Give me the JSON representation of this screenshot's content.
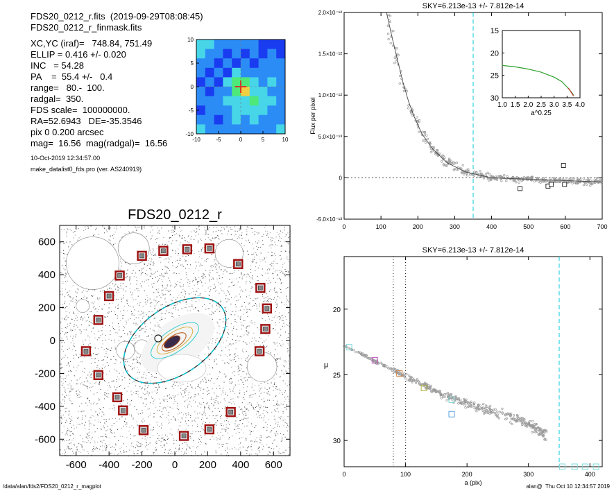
{
  "info": {
    "file_line": "FDS20_0212_r.fits  (2019-09-29T08:08:45)",
    "mask_line": "FDS20_0212_r_finmask.fits",
    "xcyc": "XC,YC (iraf)=   748.84, 751.49",
    "ellip": "ELLIP = 0.416 +/- 0.020",
    "inc": "INC   = 54.28",
    "pa": "PA    =  55.4 +/-   0.4",
    "range": "range=   80.-  100.",
    "radgal": "radgal=  350.",
    "fds_scale": "FDS scale=  100000000.",
    "radec": "RA=52.6943   DE=-35.3546",
    "pix": "pix 0 0.200 arcsec",
    "mag": "mag=  16.56  mag(radgal)=  16.56",
    "date": "10-Oct-2019 12:34:57.00",
    "program": "make_datalist0_fds.pro (ver. AS240919)"
  },
  "footer": {
    "path": "/data/alan/fds2/FDS20_0212_r_magplot",
    "user_time": "alan@  Thu Oct 10 12:34:57 2019"
  },
  "colors": {
    "accent_cyan": "#00c8d8",
    "mask_box": "#a01010",
    "data_gray": "#999999",
    "fit_green": "#2ca02c",
    "contour_low": "#33cccc",
    "contour_high": "#8b3a1a"
  },
  "chart_data": [
    {
      "type": "heatmap",
      "title": "",
      "xlim": [
        -10,
        10
      ],
      "ylim": [
        -10,
        10
      ],
      "xticks": [
        "-10",
        "-5",
        "0",
        "5",
        "10"
      ],
      "yticks": [
        "-10",
        "-5",
        "0",
        "5",
        "10"
      ],
      "grid_values": [
        [
          3,
          3,
          2,
          2,
          2,
          2,
          2,
          1,
          1,
          1
        ],
        [
          3,
          2,
          2,
          1,
          2,
          1,
          2,
          1,
          2,
          1
        ],
        [
          2,
          2,
          1,
          2,
          1,
          2,
          1,
          2,
          2,
          2
        ],
        [
          2,
          1,
          2,
          1,
          3,
          2,
          2,
          2,
          2,
          2
        ],
        [
          1,
          2,
          1,
          3,
          4,
          4,
          3,
          2,
          3,
          2
        ],
        [
          2,
          1,
          2,
          2,
          4,
          5,
          3,
          3,
          2,
          2
        ],
        [
          2,
          2,
          2,
          3,
          3,
          3,
          4,
          3,
          3,
          2
        ],
        [
          1,
          2,
          2,
          2,
          3,
          3,
          3,
          3,
          2,
          2
        ],
        [
          2,
          2,
          1,
          2,
          3,
          2,
          3,
          2,
          2,
          2
        ],
        [
          3,
          2,
          2,
          2,
          2,
          2,
          2,
          2,
          2,
          3
        ]
      ],
      "palette": [
        "#2a0d8a",
        "#1a3cf0",
        "#2c8cf6",
        "#46d6e8",
        "#4ee87a",
        "#f0d040"
      ],
      "center": [
        0,
        0
      ]
    },
    {
      "type": "scatter",
      "title": "SKY=6.213e-13 +/- 7.812e-14",
      "xlabel": "",
      "ylabel": "Flux per pixel",
      "xlim": [
        0,
        700
      ],
      "ylim": [
        -5e-13,
        2e-12
      ],
      "xticks": [
        "0",
        "100",
        "200",
        "300",
        "400",
        "500",
        "600",
        "700"
      ],
      "yticks": [
        {
          "v": -5e-13,
          "label": "-5.0×10⁻¹³"
        },
        {
          "v": 0,
          "label": "0"
        },
        {
          "v": 5e-13,
          "label": "5.0×10⁻¹³"
        },
        {
          "v": 1e-12,
          "label": "1.0×10⁻¹²"
        },
        {
          "v": 1.5e-12,
          "label": "1.5×10⁻¹²"
        },
        {
          "v": 2e-12,
          "label": "2.0×10⁻¹²"
        }
      ],
      "vline": 350,
      "zero_line": true,
      "profile_fit": [
        [
          115,
          2e-12
        ],
        [
          130,
          1.7e-12
        ],
        [
          145,
          1.42e-12
        ],
        [
          160,
          1.15e-12
        ],
        [
          175,
          9.2e-13
        ],
        [
          190,
          7.4e-13
        ],
        [
          210,
          5.4e-13
        ],
        [
          240,
          3.5e-13
        ],
        [
          280,
          1.8e-13
        ],
        [
          330,
          7e-14
        ],
        [
          400,
          0.0
        ],
        [
          700,
          -5e-14
        ]
      ],
      "mask_points": [
        [
          477,
          -1.3e-13
        ],
        [
          553,
          -1e-13
        ],
        [
          562,
          -8e-14
        ],
        [
          598,
          -8e-14
        ],
        [
          595,
          1.5e-13
        ]
      ],
      "inset": {
        "xlim": [
          1.0,
          4.0
        ],
        "ylim_inverted": [
          30,
          15
        ],
        "xlabel": "a^0.25",
        "xticks": [
          "1.0",
          "1.5",
          "2.0",
          "2.5",
          "3.0",
          "3.5",
          "4.0"
        ],
        "yticks": [
          "15",
          "20",
          "25",
          "30"
        ],
        "curve": [
          [
            1.0,
            22.8
          ],
          [
            1.5,
            23.1
          ],
          [
            2.0,
            23.6
          ],
          [
            2.5,
            24.3
          ],
          [
            3.0,
            25.4
          ],
          [
            3.3,
            26.4
          ],
          [
            3.5,
            27.6
          ],
          [
            3.65,
            28.6
          ],
          [
            3.75,
            29.4
          ]
        ]
      }
    },
    {
      "type": "scatter",
      "title": "SKY=6.213e-13 +/- 7.812e-14",
      "xlabel": "a (pix)",
      "ylabel": "μ",
      "xlim": [
        0,
        420
      ],
      "ylim_inverted": [
        32,
        16
      ],
      "xticks": [
        "0",
        "100",
        "200",
        "300",
        "400"
      ],
      "yticks": [
        "20",
        "25",
        "30"
      ],
      "vlines_dotted": [
        80,
        100
      ],
      "vline_dashed": 350,
      "profile": [
        [
          0,
          22.8
        ],
        [
          20,
          23.2
        ],
        [
          40,
          23.7
        ],
        [
          60,
          24.2
        ],
        [
          80,
          24.6
        ],
        [
          100,
          25.1
        ],
        [
          130,
          25.8
        ],
        [
          160,
          26.5
        ],
        [
          190,
          27.0
        ],
        [
          220,
          27.5
        ],
        [
          250,
          27.9
        ],
        [
          280,
          28.4
        ],
        [
          300,
          28.8
        ],
        [
          330,
          29.6
        ]
      ],
      "markers": [
        {
          "x": 8,
          "y": 22.9,
          "color": "#7fd8d8"
        },
        {
          "x": 50,
          "y": 23.9,
          "color": "#c050c0"
        },
        {
          "x": 90,
          "y": 24.9,
          "color": "#d08040"
        },
        {
          "x": 130,
          "y": 26.0,
          "color": "#b0b040"
        },
        {
          "x": 175,
          "y": 26.9,
          "color": "#7fd8d8"
        },
        {
          "x": 175,
          "y": 28.0,
          "color": "#5aa0e0"
        },
        {
          "x": 355,
          "y": 32.0,
          "color": "#7fd8d8"
        },
        {
          "x": 375,
          "y": 32.0,
          "color": "#7fd8d8"
        },
        {
          "x": 392,
          "y": 32.0,
          "color": "#7fd8d8"
        },
        {
          "x": 410,
          "y": 32.0,
          "color": "#7fd8d8"
        }
      ]
    },
    {
      "type": "scatter",
      "title": "FDS20_0212_r",
      "xlim": [
        -700,
        700
      ],
      "ylim": [
        -700,
        700
      ],
      "xticks": [
        "-600",
        "-400",
        "-200",
        "0",
        "200",
        "400",
        "600"
      ],
      "yticks": [
        "-600",
        "-400",
        "-200",
        "0",
        "200",
        "400",
        "600"
      ],
      "ellipse": {
        "cx": 0,
        "cy": 0,
        "a": 350,
        "b": 204,
        "pa_deg": 55.4
      },
      "mask_boxes": [
        [
          -200,
          515
        ],
        [
          -70,
          545
        ],
        [
          75,
          555
        ],
        [
          210,
          560
        ],
        [
          385,
          465
        ],
        [
          -335,
          395
        ],
        [
          -400,
          270
        ],
        [
          520,
          320
        ],
        [
          560,
          195
        ],
        [
          -465,
          125
        ],
        [
          550,
          70
        ],
        [
          -540,
          -65
        ],
        [
          515,
          -65
        ],
        [
          -465,
          -210
        ],
        [
          -350,
          -345
        ],
        [
          -315,
          -425
        ],
        [
          340,
          -435
        ],
        [
          -190,
          -545
        ],
        [
          210,
          -540
        ],
        [
          55,
          -580
        ]
      ],
      "masked_disks": [
        [
          -500,
          470,
          160
        ],
        [
          -250,
          560,
          95
        ],
        [
          330,
          530,
          85
        ],
        [
          530,
          -160,
          90
        ],
        [
          -300,
          -60,
          55
        ],
        [
          -200,
          -40,
          45
        ],
        [
          -560,
          210,
          40
        ]
      ]
    }
  ]
}
